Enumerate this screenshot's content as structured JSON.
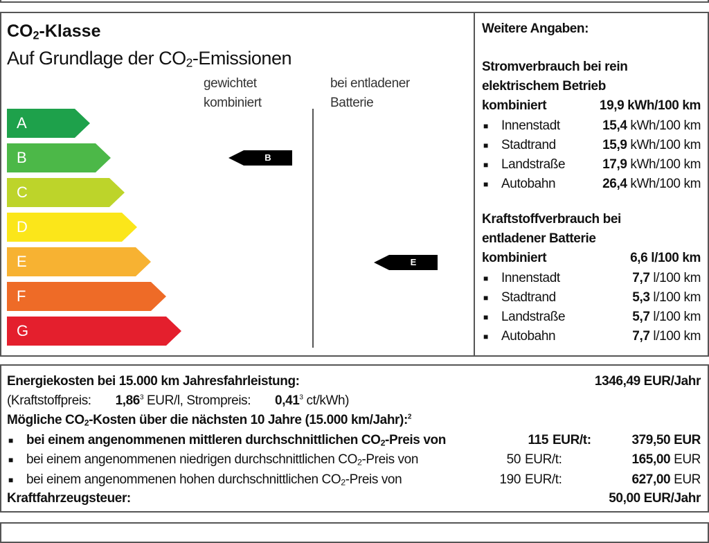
{
  "label": {
    "title_pre": "CO",
    "title_sub": "2",
    "title_post": "-Klasse",
    "subtitle_pre": "Auf Grundlage der CO",
    "subtitle_sub": "2",
    "subtitle_post": "-Emissionen",
    "col1": [
      "gewichtet",
      "kombiniert"
    ],
    "col2": [
      "bei entladener",
      "Batterie"
    ],
    "classes": [
      {
        "letter": "A",
        "color": "#1ea14b"
      },
      {
        "letter": "B",
        "color": "#4cb848"
      },
      {
        "letter": "C",
        "color": "#bdd42a"
      },
      {
        "letter": "D",
        "color": "#fbe61a"
      },
      {
        "letter": "E",
        "color": "#f7b232"
      },
      {
        "letter": "F",
        "color": "#ee6b27"
      },
      {
        "letter": "G",
        "color": "#e41f2d"
      }
    ],
    "weighted_class": "B",
    "discharged_class": "E"
  },
  "info": {
    "heading": "Weitere Angaben:",
    "electric": {
      "title": [
        "Stromverbrauch bei rein",
        "elektrischem Betrieb"
      ],
      "combined_label": "kombiniert",
      "combined_value": "19,9 kWh/100 km",
      "rows": [
        {
          "label": "Innenstadt",
          "value": "15,4",
          "unit": "kWh/100 km"
        },
        {
          "label": "Stadtrand",
          "value": "15,9",
          "unit": "kWh/100 km"
        },
        {
          "label": "Landstraße",
          "value": "17,9",
          "unit": "kWh/100 km"
        },
        {
          "label": "Autobahn",
          "value": "26,4",
          "unit": "kWh/100 km"
        }
      ]
    },
    "fuel": {
      "title": [
        "Kraftstoffverbrauch bei",
        "entladener Batterie"
      ],
      "combined_label": "kombiniert",
      "combined_value": "6,6 l/100 km",
      "rows": [
        {
          "label": "Innenstadt",
          "value": "7,7",
          "unit": "l/100 km"
        },
        {
          "label": "Stadtrand",
          "value": "5,3",
          "unit": "l/100 km"
        },
        {
          "label": "Landstraße",
          "value": "5,7",
          "unit": "l/100 km"
        },
        {
          "label": "Autobahn",
          "value": "7,7",
          "unit": "l/100 km"
        }
      ]
    }
  },
  "costs": {
    "energy_label": "Energiekosten bei 15.000 km Jahresfahrleistung:",
    "energy_value": "1346,49 EUR/Jahr",
    "fuel_price_label": "(Kraftstoffpreis:",
    "fuel_price": "1,86",
    "fuel_sup": "3",
    "fuel_unit": "EUR/l, Strompreis:",
    "power_price": "0,41",
    "power_sup": "3",
    "power_unit": "ct/kWh)",
    "co2_heading_pre": "Mögliche CO",
    "co2_heading_sub": "2",
    "co2_heading_post": "-Kosten über die nächsten 10 Jahre (15.000 km/Jahr):",
    "co2_heading_sup": "2",
    "scenarios": [
      {
        "text_pre": "bei einem angenommenen mittleren durchschnittlichen CO",
        "text_post": "-Preis von",
        "price": "115",
        "price_unit": "EUR/t:",
        "value": "379,50",
        "unit": "EUR",
        "bold": true
      },
      {
        "text_pre": "bei einem angenommenen niedrigen durchschnittlichen CO",
        "text_post": "-Preis von",
        "price": "50",
        "price_unit": "EUR/t:",
        "value": "165,00",
        "unit": "EUR",
        "bold": false
      },
      {
        "text_pre": "bei einem angenommenen hohen durchschnittlichen CO",
        "text_post": "-Preis von",
        "price": "190",
        "price_unit": "EUR/t:",
        "value": "627,00",
        "unit": "EUR",
        "bold": false
      }
    ],
    "sub2": "2",
    "tax_label": "Kraftfahrzeugsteuer:",
    "tax_value": "50,00 EUR/Jahr"
  }
}
